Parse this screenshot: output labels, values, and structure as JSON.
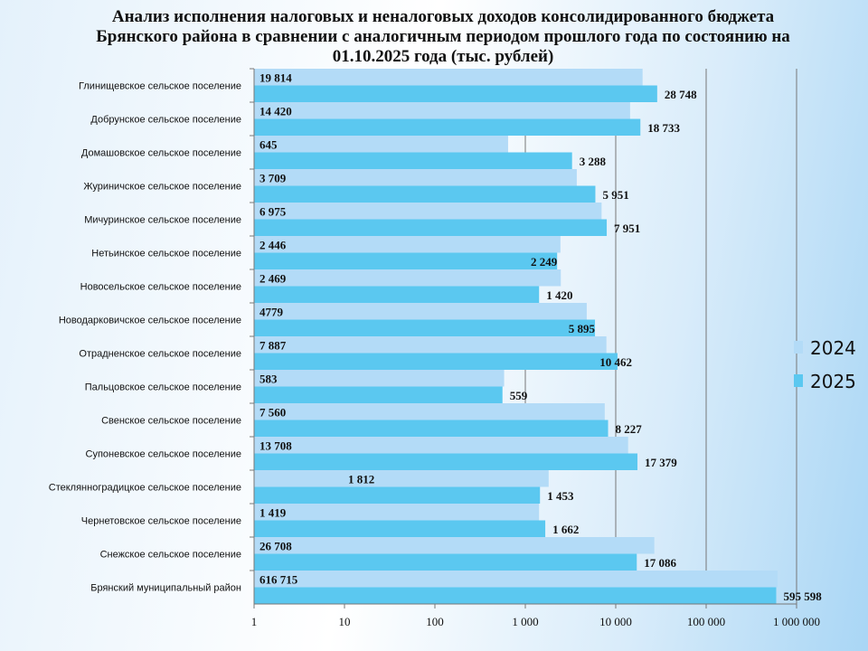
{
  "chart_data": {
    "type": "bar",
    "orientation": "horizontal",
    "title": "Анализ исполнения налоговых и неналоговых доходов консолидированного бюджета Брянского района в сравнении с аналогичным периодом прошлого года по состоянию на 01.10.2025 года  (тыс. рублей)",
    "categories": [
      "Глинищевское  сельское  поселение",
      "Добрунское  сельское  поселение",
      "Домашовское  сельское  поселение",
      "Журиничское  сельское  поселение",
      "Мичуринское  сельское  поселение",
      "Нетьинское  сельское  поселение",
      "Новосельское  сельское  поселение",
      "Новодарковичское  сельское  поселение",
      "Отрадненское  сельское  поселение",
      "Пальцовское  сельское  поселение",
      "Свенское  сельское  поселение",
      "Супоневское  сельское  поселение",
      "Стеклянноградицкое  сельское  поселение",
      "Чернетовское  сельское  поселение",
      "Снежское  сельское  поселение",
      "Брянский  муниципальный  район"
    ],
    "series": [
      {
        "name": "2024",
        "color": "#b3dbf7",
        "values": [
          19814,
          14420,
          645,
          3709,
          6975,
          2446,
          2469,
          4779,
          7887,
          583,
          7560,
          13708,
          1812,
          1419,
          26708,
          616715
        ],
        "labels": [
          "19 814",
          "14 420",
          "645",
          "3 709",
          "6 975",
          "2 446",
          "2 469",
          "4779",
          "7 887",
          "583",
          "7 560",
          "13 708",
          "1 812",
          "1 419",
          "26 708",
          "616 715"
        ]
      },
      {
        "name": "2025",
        "color": "#5bc8f0",
        "values": [
          28748,
          18733,
          3288,
          5951,
          7951,
          2249,
          1420,
          5895,
          10462,
          559,
          8227,
          17379,
          1453,
          1662,
          17086,
          595598
        ],
        "labels": [
          "28 748",
          "18 733",
          "3 288",
          "5 951",
          "7 951",
          "2 249",
          "1 420",
          "5 895",
          "10 462",
          "559",
          "8 227",
          "17 379",
          "1 453",
          "1 662",
          "17 086",
          "595 598"
        ]
      }
    ],
    "xscale": "log",
    "xlim": [
      1,
      1000000
    ],
    "xticks": [
      "1",
      "10",
      "100",
      "1 000",
      "10 000",
      "100 000",
      "1 000 000"
    ],
    "grid": "vertical major",
    "legend": "right"
  }
}
